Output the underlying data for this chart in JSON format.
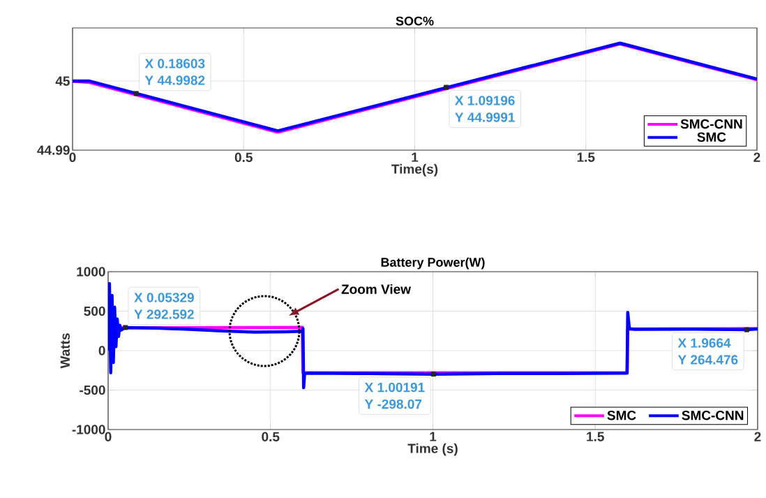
{
  "chart_data": [
    {
      "type": "line",
      "title": "SOC%",
      "xlabel": "Time(s)",
      "xlim": [
        0,
        2
      ],
      "xticks": [
        0,
        0.5,
        1,
        1.5,
        2
      ],
      "ylim": [
        44.99,
        45.0077
      ],
      "yticks": [
        44.99,
        45
      ],
      "grid": true,
      "legend": "bottom right",
      "series": [
        {
          "name": "SMC-CNN",
          "color": "#ff00ff",
          "x": [
            0,
            0.05,
            0.6,
            1.6,
            2
          ],
          "values": [
            45,
            44.9998,
            44.9926,
            45.0054,
            45.0002
          ]
        },
        {
          "name": "SMC",
          "color": "#0000ff",
          "x": [
            0,
            0.05,
            0.6,
            1.6,
            2
          ],
          "values": [
            45,
            45,
            44.9928,
            45.0055,
            45.0003
          ]
        }
      ],
      "annotations": [
        {
          "text": "X 0.18603",
          "x": 0.18603,
          "y": 44.9982
        },
        {
          "text": "Y 44.9982",
          "x": 0.18603,
          "y": 44.9982
        },
        {
          "text": "X 1.09196",
          "x": 1.09196,
          "y": 44.9991
        },
        {
          "text": "Y 44.9991",
          "x": 1.09196,
          "y": 44.9991
        }
      ]
    },
    {
      "type": "line",
      "title": "Battery Power(W)",
      "xlabel": "Time (s)",
      "ylabel": "Watts",
      "xlim": [
        0,
        2
      ],
      "xticks": [
        0,
        0.5,
        1,
        1.5,
        2
      ],
      "ylim": [
        -1000,
        1000
      ],
      "yticks": [
        -1000,
        -500,
        0,
        500,
        1000
      ],
      "grid": true,
      "legend": "bottom right",
      "series": [
        {
          "name": "SMC",
          "color": "#ff00ff",
          "x": [
            0.04,
            0.2,
            0.4,
            0.598,
            0.6,
            0.62,
            1.0,
            1.598,
            1.6,
            1.62,
            2
          ],
          "values": [
            290,
            290,
            292,
            295,
            -280,
            -280,
            -282,
            -280,
            270,
            275,
            278
          ]
        },
        {
          "name": "SMC-CNN",
          "color": "#0000ff",
          "x": [
            0,
            0.004,
            0.008,
            0.012,
            0.016,
            0.02,
            0.024,
            0.028,
            0.032,
            0.036,
            0.04,
            0.05329,
            0.15,
            0.25,
            0.35,
            0.45,
            0.55,
            0.598,
            0.6,
            0.602,
            0.605,
            0.62,
            0.8,
            1.00191,
            1.2,
            1.4,
            1.598,
            1.6,
            1.605,
            1.62,
            1.8,
            1.9664,
            2
          ],
          "values": [
            0,
            850,
            -280,
            700,
            -150,
            550,
            50,
            400,
            180,
            320,
            260,
            292.592,
            285,
            270,
            250,
            235,
            240,
            245,
            280,
            -470,
            -290,
            -285,
            -290,
            -298.07,
            -290,
            -290,
            -285,
            485,
            280,
            270,
            272,
            264.476,
            275
          ]
        }
      ],
      "annotations": [
        {
          "text": "X 0.05329",
          "x": 0.05329,
          "y": 292.592
        },
        {
          "text": "Y 292.592",
          "x": 0.05329,
          "y": 292.592
        },
        {
          "text": "X 1.00191",
          "x": 1.00191,
          "y": -298.07
        },
        {
          "text": "Y -298.07",
          "x": 1.00191,
          "y": -298.07
        },
        {
          "text": "X 1.9664",
          "x": 1.9664,
          "y": 264.476
        },
        {
          "text": "Y 264.476",
          "x": 1.9664,
          "y": 264.476
        },
        "Zoom View"
      ]
    }
  ]
}
